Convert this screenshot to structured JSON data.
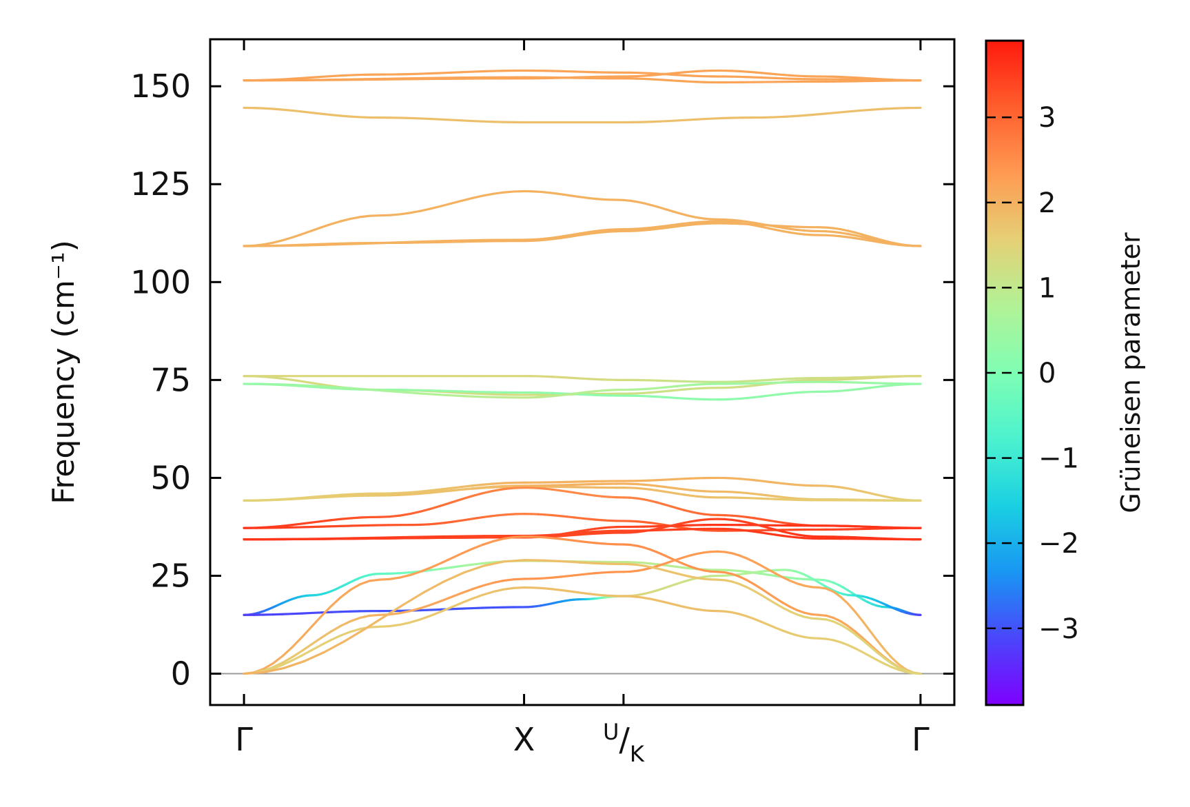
{
  "chart_data": {
    "type": "line",
    "ylabel": "Frequency (cm⁻¹)",
    "ylim": [
      -8,
      162
    ],
    "yticks": [
      {
        "value": 0,
        "label": "0"
      },
      {
        "value": 25,
        "label": "25"
      },
      {
        "value": 50,
        "label": "50"
      },
      {
        "value": 75,
        "label": "75"
      },
      {
        "value": 100,
        "label": "100"
      },
      {
        "value": 125,
        "label": "125"
      },
      {
        "value": 150,
        "label": "150"
      }
    ],
    "xlim": [
      -0.05,
      1.05
    ],
    "high_symmetry_points": [
      {
        "x": 0.0,
        "label": "Γ"
      },
      {
        "x": 0.414,
        "label": "X"
      },
      {
        "x": 0.561,
        "label_main": "U",
        "label_sub": "K"
      },
      {
        "x": 1.0,
        "label": "Γ"
      }
    ],
    "zero_line": 0,
    "colorbar": {
      "label": "Grüneisen parameter",
      "range": [
        -3.9,
        3.9
      ],
      "colormap": [
        "#7f00ff",
        "#4a46fb",
        "#1996f3",
        "#1ad0e2",
        "#4cf2ce",
        "#7ffeb4",
        "#b2f296",
        "#e5d075",
        "#ff9a52",
        "#ff5e2d",
        "#ff1a0d"
      ],
      "ticks": [
        {
          "value": 3,
          "label": "3"
        },
        {
          "value": 2,
          "label": "2"
        },
        {
          "value": 1,
          "label": "1"
        },
        {
          "value": 0,
          "label": "0"
        },
        {
          "value": -1,
          "label": "−1"
        },
        {
          "value": -2,
          "label": "−2"
        },
        {
          "value": -3,
          "label": "−3"
        }
      ]
    },
    "series": [
      {
        "points": [
          [
            0,
            151.5,
            2.2
          ],
          [
            0.2,
            153,
            2.2
          ],
          [
            0.414,
            154,
            2.2
          ],
          [
            0.561,
            153.5,
            2.2
          ],
          [
            0.7,
            152.5,
            2.2
          ],
          [
            0.85,
            151.8,
            2.2
          ],
          [
            1,
            151.5,
            2.2
          ]
        ]
      },
      {
        "points": [
          [
            0,
            151.5,
            2.2
          ],
          [
            0.414,
            152,
            2.2
          ],
          [
            0.561,
            152.5,
            2.2
          ],
          [
            0.7,
            154,
            2.2
          ],
          [
            0.85,
            152.5,
            2.2
          ],
          [
            1,
            151.5,
            2.2
          ]
        ]
      },
      {
        "points": [
          [
            0,
            151.5,
            2.2
          ],
          [
            0.414,
            152.3,
            2.2
          ],
          [
            0.561,
            152,
            2.2
          ],
          [
            0.7,
            151,
            2.2
          ],
          [
            0.85,
            151.2,
            2.2
          ],
          [
            1,
            151.5,
            2.2
          ]
        ]
      },
      {
        "points": [
          [
            0,
            144.5,
            1.8
          ],
          [
            0.2,
            142,
            1.8
          ],
          [
            0.414,
            140.8,
            1.8
          ],
          [
            0.561,
            140.8,
            1.8
          ],
          [
            0.75,
            142,
            1.8
          ],
          [
            1,
            144.5,
            1.8
          ]
        ]
      },
      {
        "points": [
          [
            0,
            109.2,
            2.0
          ],
          [
            0.2,
            117,
            2.0
          ],
          [
            0.414,
            123.2,
            2.0
          ],
          [
            0.55,
            121,
            2.0
          ],
          [
            0.7,
            116,
            2.0
          ],
          [
            0.85,
            113,
            2.0
          ],
          [
            1,
            109.2,
            2.0
          ]
        ]
      },
      {
        "points": [
          [
            0,
            109.2,
            2.0
          ],
          [
            0.414,
            110.8,
            2.0
          ],
          [
            0.561,
            113.5,
            2.0
          ],
          [
            0.7,
            115.5,
            2.0
          ],
          [
            0.85,
            112,
            2.0
          ],
          [
            1,
            109.2,
            2.0
          ]
        ]
      },
      {
        "points": [
          [
            0,
            109.2,
            2.0
          ],
          [
            0.2,
            110,
            2.0
          ],
          [
            0.414,
            110.5,
            2.0
          ],
          [
            0.561,
            113,
            2.0
          ],
          [
            0.7,
            115,
            2.0
          ],
          [
            0.85,
            114,
            2.0
          ],
          [
            1,
            109.2,
            2.0
          ]
        ]
      },
      {
        "points": [
          [
            0,
            76,
            1.4
          ],
          [
            0.414,
            76,
            1.4
          ],
          [
            0.561,
            75,
            1.3
          ],
          [
            0.7,
            74.5,
            1.0
          ],
          [
            0.85,
            75.5,
            1.2
          ],
          [
            1,
            76,
            1.4
          ]
        ]
      },
      {
        "points": [
          [
            0,
            76,
            1.4
          ],
          [
            0.2,
            72.5,
            1.2
          ],
          [
            0.414,
            71.2,
            1.3
          ],
          [
            0.561,
            71.5,
            1.2
          ],
          [
            0.7,
            73,
            1.2
          ],
          [
            0.85,
            75,
            1.3
          ],
          [
            1,
            76,
            1.4
          ]
        ]
      },
      {
        "points": [
          [
            0,
            74,
            0.3
          ],
          [
            0.2,
            72.5,
            0.4
          ],
          [
            0.414,
            71.8,
            0.3
          ],
          [
            0.561,
            71,
            0.2
          ],
          [
            0.7,
            70,
            0.2
          ],
          [
            0.85,
            72,
            0.3
          ],
          [
            1,
            74,
            0.3
          ]
        ]
      },
      {
        "points": [
          [
            0,
            74,
            0.3
          ],
          [
            0.414,
            70.5,
            1.0
          ],
          [
            0.561,
            72.5,
            0.8
          ],
          [
            0.7,
            74,
            0.5
          ],
          [
            0.85,
            74.5,
            0.5
          ],
          [
            1,
            74,
            0.3
          ]
        ]
      },
      {
        "points": [
          [
            0,
            44.2,
            1.5
          ],
          [
            0.2,
            46,
            1.6
          ],
          [
            0.414,
            48.8,
            2.0
          ],
          [
            0.561,
            49.2,
            2.0
          ],
          [
            0.7,
            50,
            2.0
          ],
          [
            0.85,
            48,
            1.9
          ],
          [
            1,
            44.2,
            1.5
          ]
        ]
      },
      {
        "points": [
          [
            0,
            44.2,
            1.5
          ],
          [
            0.2,
            45.5,
            1.7
          ],
          [
            0.414,
            48,
            2.0
          ],
          [
            0.561,
            48.5,
            2.0
          ],
          [
            0.7,
            46.5,
            1.9
          ],
          [
            0.85,
            44.5,
            1.7
          ],
          [
            1,
            44.2,
            1.5
          ]
        ]
      },
      {
        "points": [
          [
            0,
            44.2,
            1.5
          ],
          [
            0.2,
            45.8,
            1.7
          ],
          [
            0.414,
            47.8,
            1.9
          ],
          [
            0.561,
            47.5,
            1.9
          ],
          [
            0.7,
            45,
            1.8
          ],
          [
            0.85,
            44.3,
            1.6
          ],
          [
            1,
            44.2,
            1.5
          ]
        ]
      },
      {
        "points": [
          [
            0,
            37.2,
            3.6
          ],
          [
            0.25,
            38,
            3.2
          ],
          [
            0.414,
            40.8,
            2.7
          ],
          [
            0.561,
            39,
            3.0
          ],
          [
            0.7,
            36.5,
            3.2
          ],
          [
            0.85,
            36.8,
            3.4
          ],
          [
            1,
            37.2,
            3.6
          ]
        ]
      },
      {
        "points": [
          [
            0,
            37.2,
            3.6
          ],
          [
            0.2,
            40,
            3.2
          ],
          [
            0.414,
            47.5,
            2.5
          ],
          [
            0.561,
            45,
            2.6
          ],
          [
            0.7,
            40.5,
            3.0
          ],
          [
            0.85,
            37.8,
            3.4
          ],
          [
            1,
            37.2,
            3.6
          ]
        ]
      },
      {
        "points": [
          [
            0,
            34.3,
            3.6
          ],
          [
            0.414,
            34.8,
            3.4
          ],
          [
            0.561,
            37.5,
            3.4
          ],
          [
            0.7,
            38,
            3.6
          ],
          [
            0.85,
            37.8,
            3.6
          ],
          [
            1,
            37.2,
            3.6
          ]
        ]
      },
      {
        "points": [
          [
            0,
            34.3,
            3.6
          ],
          [
            0.414,
            34.8,
            3.4
          ],
          [
            0.561,
            36,
            3.4
          ],
          [
            0.7,
            39.5,
            3.4
          ],
          [
            0.85,
            35,
            3.6
          ],
          [
            1,
            34.3,
            3.6
          ]
        ]
      },
      {
        "points": [
          [
            0,
            34.3,
            3.6
          ],
          [
            0.414,
            35.2,
            3.4
          ],
          [
            0.561,
            36.5,
            3.4
          ],
          [
            0.7,
            37,
            3.5
          ],
          [
            0.85,
            34.5,
            3.6
          ],
          [
            1,
            34.3,
            3.6
          ]
        ]
      },
      {
        "points": [
          [
            0,
            15,
            -3.2
          ],
          [
            0.1,
            20,
            -1.5
          ],
          [
            0.2,
            25.5,
            -0.5
          ],
          [
            0.414,
            28.8,
            1.2
          ],
          [
            0.561,
            28.5,
            1.0
          ],
          [
            0.7,
            26.5,
            0.8
          ],
          [
            0.85,
            24,
            0.2
          ],
          [
            0.95,
            17,
            -1.5
          ],
          [
            1,
            15,
            -3.2
          ]
        ]
      },
      {
        "points": [
          [
            0,
            15,
            -3.2
          ],
          [
            0.2,
            16,
            -3.0
          ],
          [
            0.414,
            17,
            -3.0
          ],
          [
            0.5,
            19,
            -2.0
          ],
          [
            0.561,
            19.8,
            1.5
          ],
          [
            0.7,
            25,
            1.0
          ],
          [
            0.8,
            26.5,
            0.5
          ],
          [
            0.9,
            20,
            -1.0
          ],
          [
            1,
            15,
            -3.2
          ]
        ]
      },
      {
        "points": [
          [
            0,
            0,
            2.0
          ],
          [
            0.2,
            24,
            2.2
          ],
          [
            0.414,
            35,
            2.4
          ],
          [
            0.561,
            33,
            2.5
          ],
          [
            0.7,
            26,
            2.4
          ],
          [
            0.85,
            15,
            2.2
          ],
          [
            1,
            0,
            2.0
          ]
        ]
      },
      {
        "points": [
          [
            0,
            0,
            1.5
          ],
          [
            0.2,
            15,
            2.0
          ],
          [
            0.414,
            24.2,
            2.4
          ],
          [
            0.561,
            26,
            2.4
          ],
          [
            0.7,
            31.2,
            2.3
          ],
          [
            0.85,
            22,
            2.1
          ],
          [
            1,
            0,
            1.8
          ]
        ]
      },
      {
        "points": [
          [
            0,
            0,
            1.5
          ],
          [
            0.2,
            12,
            1.6
          ],
          [
            0.414,
            22,
            1.8
          ],
          [
            0.561,
            19.8,
            1.8
          ],
          [
            0.7,
            16,
            1.8
          ],
          [
            0.85,
            9,
            1.6
          ],
          [
            1,
            0,
            1.5
          ]
        ]
      },
      {
        "points": [
          [
            0,
            0,
            2.0
          ],
          [
            0.414,
            29,
            1.8
          ],
          [
            0.561,
            28,
            1.8
          ],
          [
            0.7,
            24,
            1.7
          ],
          [
            0.85,
            14,
            1.5
          ],
          [
            1,
            0,
            1.5
          ]
        ]
      }
    ]
  }
}
